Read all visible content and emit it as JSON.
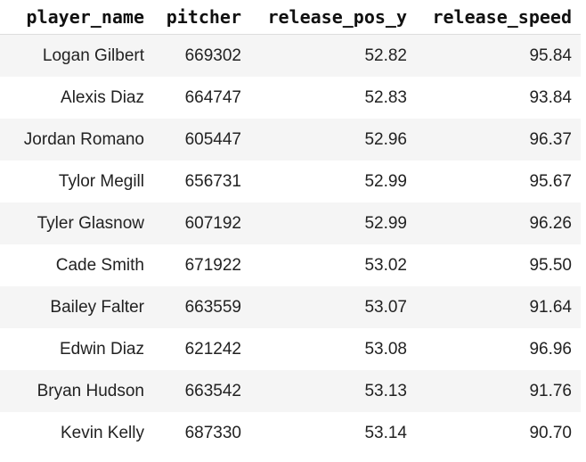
{
  "table": {
    "columns": [
      "player_name",
      "pitcher",
      "release_pos_y",
      "release_speed"
    ],
    "rows": [
      [
        "Logan Gilbert",
        669302,
        52.82,
        95.84
      ],
      [
        "Alexis Diaz",
        664747,
        52.83,
        93.84
      ],
      [
        "Jordan Romano",
        605447,
        52.96,
        96.37
      ],
      [
        "Tylor Megill",
        656731,
        52.99,
        95.67
      ],
      [
        "Tyler Glasnow",
        607192,
        52.99,
        96.26
      ],
      [
        "Cade Smith",
        671922,
        53.02,
        "95.50"
      ],
      [
        "Bailey Falter",
        663559,
        53.07,
        91.64
      ],
      [
        "Edwin Diaz",
        621242,
        53.08,
        96.96
      ],
      [
        "Bryan Hudson",
        663542,
        53.13,
        91.76
      ],
      [
        "Kevin Kelly",
        687330,
        53.14,
        "90.70"
      ]
    ]
  }
}
